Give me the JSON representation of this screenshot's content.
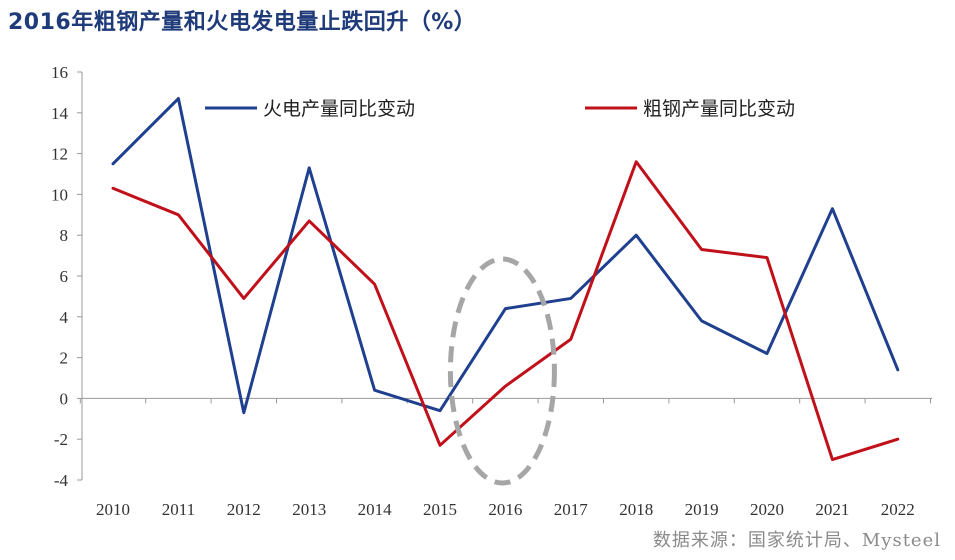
{
  "title": "2016年粗钢产量和火电发电量止跌回升（%）",
  "source": "数据来源：国家统计局、Mysteel",
  "chart_data": {
    "type": "line",
    "title": "2016年粗钢产量和火电发电量止跌回升（%）",
    "categories": [
      "2010",
      "2011",
      "2012",
      "2013",
      "2014",
      "2015",
      "2016",
      "2017",
      "2018",
      "2019",
      "2020",
      "2021",
      "2022"
    ],
    "series": [
      {
        "name": "火电产量同比变动",
        "color": "#1f3f8f",
        "values": [
          11.5,
          14.7,
          -0.7,
          11.3,
          0.4,
          -0.6,
          4.4,
          4.9,
          8.0,
          3.8,
          2.2,
          9.3,
          1.4
        ]
      },
      {
        "name": "粗钢产量同比变动",
        "color": "#c0101a",
        "values": [
          10.3,
          9.0,
          4.9,
          8.7,
          5.6,
          -2.3,
          0.6,
          2.9,
          11.6,
          7.3,
          6.9,
          -3.0,
          -2.0
        ]
      }
    ],
    "yticks": [
      -4,
      -2,
      0,
      2,
      4,
      6,
      8,
      10,
      12,
      14,
      16
    ],
    "ylim": [
      -4,
      16
    ],
    "grid": false,
    "legend": "top",
    "annotation": {
      "type": "dashed-ellipse",
      "around_category": "2016",
      "color": "#a6a6a6"
    }
  }
}
